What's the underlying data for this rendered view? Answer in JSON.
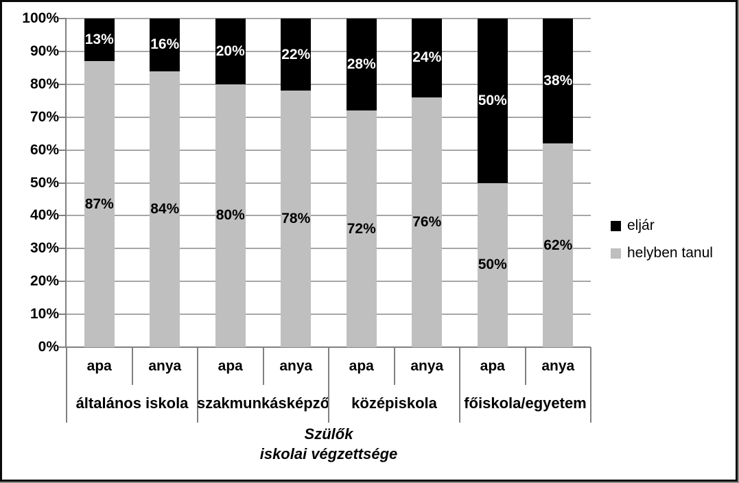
{
  "chart_data": {
    "type": "bar",
    "variant": "stacked-100-percent",
    "orientation": "vertical",
    "categories": [
      "apa",
      "anya",
      "apa",
      "anya",
      "apa",
      "anya",
      "apa",
      "anya"
    ],
    "group_labels": [
      "általános iskola",
      "szakmunkásképző",
      "középiskola",
      "főiskola/egyetem"
    ],
    "series": [
      {
        "name": "helyben tanul",
        "color": "#bfbfbf",
        "label_color": "#000000",
        "values": [
          87,
          84,
          80,
          78,
          72,
          76,
          50,
          62
        ]
      },
      {
        "name": "eljár",
        "color": "#000000",
        "label_color": "#ffffff",
        "values": [
          13,
          16,
          20,
          22,
          28,
          24,
          50,
          38
        ]
      }
    ],
    "data_label_suffix": "%",
    "y_tick_labels": [
      "0%",
      "10%",
      "20%",
      "30%",
      "40%",
      "50%",
      "60%",
      "70%",
      "80%",
      "90%",
      "100%"
    ],
    "ylim": [
      0,
      100
    ],
    "grid": true,
    "legend_position": "right",
    "legend_order": [
      "eljár",
      "helyben tanul"
    ],
    "x_axis_title_lines": [
      "Szülők",
      "iskolai végzettsége"
    ],
    "colors": {
      "plot_background": "#ffffff",
      "gridline": "#a6a6a6",
      "axis_line": "#808080",
      "frame_border": "#0a0a0a",
      "frame_shadow": "#8c8c8c"
    }
  }
}
